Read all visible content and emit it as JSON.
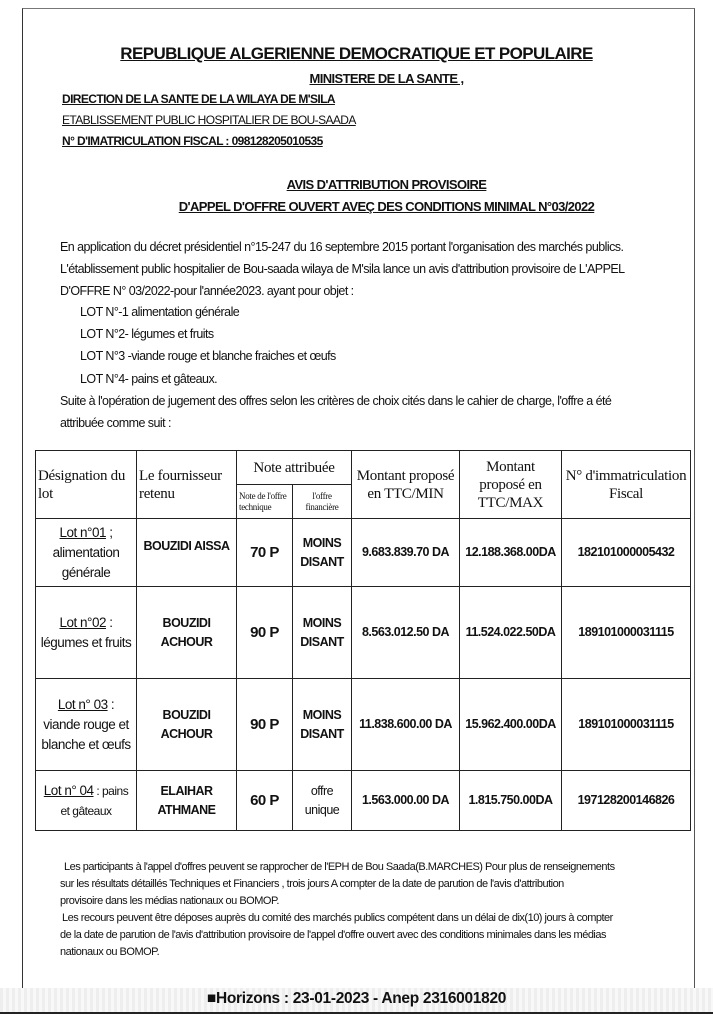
{
  "header": {
    "republic": "REPUBLIQUE ALGERIENNE DEMOCRATIQUE ET POPULAIRE",
    "ministry": "MINISTERE DE LA SANTE ,",
    "direction": "DIRECTION DE LA SANTE DE LA WILAYA DE M'SILA",
    "establishment": "ETABLISSEMENT PUBLIC HOSPITALIER DE BOU-SAADA",
    "fiscal": "N° D'IMATRICULATION FISCAL : 098128205010535"
  },
  "title": {
    "line1": "AVIS D'ATTRIBUTION PROVISOIRE",
    "line2": "D'APPEL D'OFFRE OUVERT AVEÇ DES CONDITIONS MINIMAL N°03/2022"
  },
  "intro": {
    "l1": "En application du décret présidentiel n°15-247 du 16 septembre  2015 portant l'organisation des marchés publics.",
    "l2": " L'établissement public hospitalier de Bou-saada wilaya de M'sila lance un avis d'attribution provisoire de L'APPEL",
    "l3": "D'OFFRE  N° 03/2022-pour l'année2023.  ayant pour objet :",
    "lots": [
      "LOT N°-1 alimentation générale",
      "LOT N°2- légumes et fruits",
      "LOT N°3 -viande rouge  et  blanche fraiches et œufs",
      "LOT N°4- pains et gâteaux."
    ],
    "s1": "Suite à l'opération de jugement des offres selon les critères de choix cités dans le cahier de charge, l'offre a été",
    "s2": "attribuée comme suit :"
  },
  "table": {
    "headers": {
      "designation": "Désignation du lot",
      "supplier": "Le fournisseur retenu",
      "note": "Note attribuée",
      "note_tech": "Note de l'offre technique",
      "note_fin": "l'offre financière",
      "min": "Montant proposé en TTC/MIN",
      "max": "Montant proposé en TTC/MAX",
      "nif": "N° d'immatriculation Fiscal"
    },
    "rows": [
      {
        "lot": "Lot n°01",
        "lot_desc": " ; alimentation générale",
        "supplier": "BOUZIDI AISSA",
        "tech": "70  P",
        "fin": "MOINS DISANT",
        "min": "9.683.839.70 DA",
        "max": "12.188.368.00DA",
        "nif": "182101000005432"
      },
      {
        "lot": "Lot n°02",
        "lot_desc": " : légumes et fruits",
        "supplier": "BOUZIDI ACHOUR",
        "tech": "90  P",
        "fin": "MOINS DISANT",
        "min": "8.563.012.50 DA",
        "max": "11.524.022.50DA",
        "nif": "189101000031115"
      },
      {
        "lot": "Lot n° 03",
        "lot_desc": " : viande rouge et blanche et œufs",
        "supplier": "BOUZIDI ACHOUR",
        "tech": "90  P",
        "fin": "MOINS DISANT",
        "min": "11.838.600.00 DA",
        "max": "15.962.400.00DA",
        "nif": "189101000031115"
      },
      {
        "lot": "Lot n° 04",
        "lot_desc": " : pains et gâteaux",
        "supplier": "ELAIHAR ATHMANE",
        "tech": "60  P",
        "fin": "offre unique",
        "min": "1.563.000.00  DA",
        "max": "1.815.750.00DA",
        "nif": "197128200146826"
      }
    ]
  },
  "footer": {
    "f1": "Les participants à l'appel d'offres peuvent  se rapprocher de  l'EPH de Bou Saada(B.MARCHES)  Pour  plus de renseignements",
    "f2": "sur  les résultats détaillés  Techniques et Financiers   , trois jours A compter de la date de parution de l'avis d'attribution",
    "f3": "provisoire  dans les médias nationaux ou BOMOP.",
    "f4": "Les recours  peuvent être   déposes  auprès du comité des marchés publics compétent dans un délai de dix(10) jours  à compter",
    "f5": "de la date de parution  de l'avis d'attribution provisoire  de  l'appel d'offre ouvert avec des conditions minimales dans les médias",
    "f6": "nationaux ou BOMOP.",
    "publication": "■Horizons : 23-01-2023 - Anep 2316001820"
  }
}
